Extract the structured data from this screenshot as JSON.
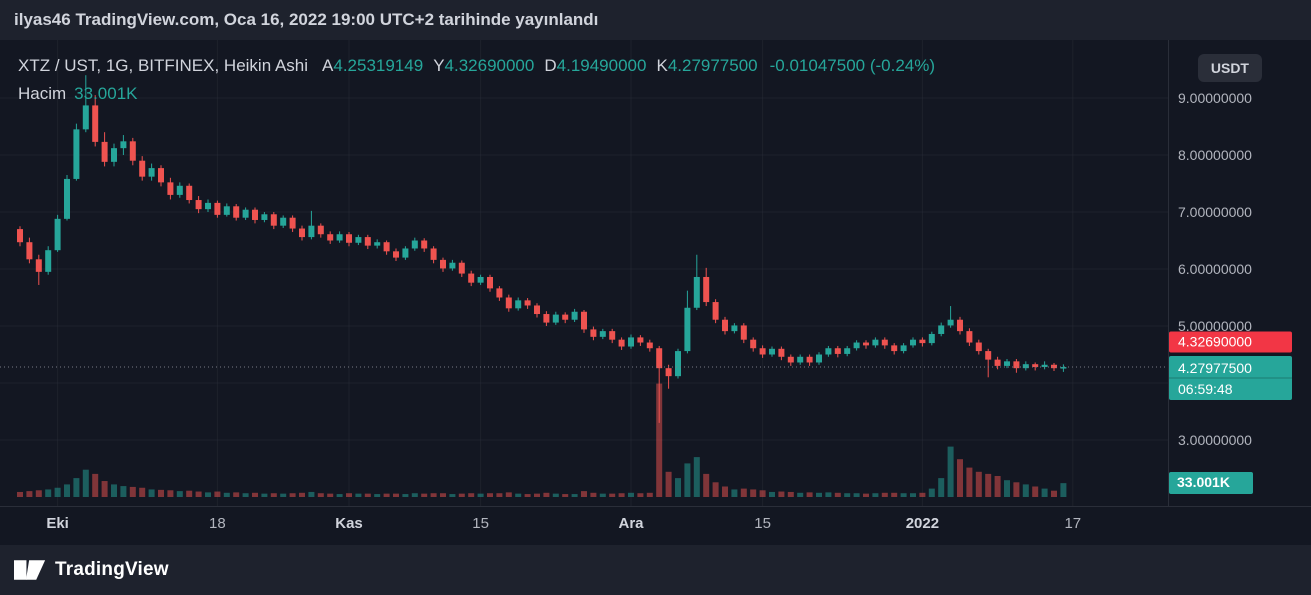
{
  "topbar": {
    "published_text": "ilyas46 TradingView.com, Oca 16, 2022 19:00 UTC+2 tarihinde yayınlandı"
  },
  "legend": {
    "title": "XTZ / UST, 1G, BITFINEX, Heikin Ashi",
    "ohlc": [
      {
        "label": "A",
        "value": "4.25319149"
      },
      {
        "label": "Y",
        "value": "4.32690000"
      },
      {
        "label": "D",
        "value": "4.19490000"
      },
      {
        "label": "K",
        "value": "4.27977500"
      }
    ],
    "change": "-0.01047500 (-0.24%)",
    "volume_label": "Hacim",
    "volume_value": "33.001K"
  },
  "price_scale": {
    "currency_button": "USDT",
    "labels": [
      {
        "price": 9,
        "text": "9.00000000"
      },
      {
        "price": 8,
        "text": "8.00000000"
      },
      {
        "price": 7,
        "text": "7.00000000"
      },
      {
        "price": 6,
        "text": "6.00000000"
      },
      {
        "price": 5,
        "text": "5.00000000"
      },
      {
        "price": 3,
        "text": "3.00000000"
      }
    ],
    "high_badge": {
      "text": "4.32690000",
      "price": 4.3269
    },
    "last_badge": {
      "price_text": "4.27977500",
      "countdown": "06:59:48",
      "price": 4.279775
    },
    "volume_badge": {
      "text": "33.001K"
    }
  },
  "time_scale": {
    "labels": [
      {
        "i": 4,
        "text": "Eki",
        "major": true
      },
      {
        "i": 21,
        "text": "18",
        "major": false
      },
      {
        "i": 35,
        "text": "Kas",
        "major": true
      },
      {
        "i": 49,
        "text": "15",
        "major": false
      },
      {
        "i": 65,
        "text": "Ara",
        "major": true
      },
      {
        "i": 79,
        "text": "15",
        "major": false
      },
      {
        "i": 96,
        "text": "2022",
        "major": true
      },
      {
        "i": 112,
        "text": "17",
        "major": false
      }
    ]
  },
  "footer": {
    "brand": "TradingView"
  },
  "colors": {
    "background": "#131722",
    "panel": "#1e222d",
    "up": "#26a69a",
    "down": "#ef5350",
    "high_badge": "#f23645",
    "last_badge": "#26a69a",
    "axis_text": "#b2b5be",
    "text": "#d1d4dc",
    "grid": "#2a2e39",
    "separator": "#2a2e39",
    "dotted_line": "#787b86",
    "badge_text": "#ffffff"
  },
  "chart_data": {
    "type": "candlestick",
    "style": "Heikin Ashi",
    "symbol": "XTZ / UST",
    "interval": "1G",
    "exchange": "BITFINEX",
    "title": "XTZ / UST, 1G, BITFINEX, Heikin Ashi",
    "legend_position": "top-left",
    "grid": true,
    "y_axis": {
      "visible_ticks": [
        9,
        8,
        7,
        6,
        5,
        3
      ],
      "range_approx": [
        2.0,
        10.0
      ]
    },
    "x_axis": {
      "labels": [
        "Eki",
        "18",
        "Kas",
        "15",
        "Ara",
        "15",
        "2022",
        "17"
      ]
    },
    "volume_pane": {
      "last_value_k": 33.001,
      "max_value_k_approx": 270
    },
    "columns": [
      "date",
      "open",
      "high",
      "low",
      "close",
      "volume_k"
    ],
    "candles": [
      [
        "2021-09-27",
        6.7,
        6.75,
        6.4,
        6.47,
        12
      ],
      [
        "2021-09-28",
        6.47,
        6.55,
        6.1,
        6.17,
        14
      ],
      [
        "2021-09-29",
        6.17,
        6.25,
        5.72,
        5.95,
        16
      ],
      [
        "2021-09-30",
        5.95,
        6.4,
        5.9,
        6.33,
        18
      ],
      [
        "2021-10-01",
        6.33,
        6.95,
        6.3,
        6.88,
        22
      ],
      [
        "2021-10-02",
        6.88,
        7.65,
        6.85,
        7.58,
        30
      ],
      [
        "2021-10-03",
        7.58,
        8.55,
        7.55,
        8.45,
        45
      ],
      [
        "2021-10-04",
        8.45,
        9.4,
        8.4,
        8.87,
        65
      ],
      [
        "2021-10-05",
        8.87,
        9.05,
        8.15,
        8.23,
        55
      ],
      [
        "2021-10-06",
        8.23,
        8.4,
        7.8,
        7.88,
        38
      ],
      [
        "2021-10-07",
        7.88,
        8.2,
        7.8,
        8.12,
        30
      ],
      [
        "2021-10-08",
        8.12,
        8.35,
        8.0,
        8.24,
        26
      ],
      [
        "2021-10-09",
        8.24,
        8.3,
        7.82,
        7.9,
        24
      ],
      [
        "2021-10-10",
        7.9,
        7.98,
        7.55,
        7.62,
        22
      ],
      [
        "2021-10-11",
        7.62,
        7.85,
        7.55,
        7.77,
        18
      ],
      [
        "2021-10-12",
        7.77,
        7.82,
        7.45,
        7.52,
        17
      ],
      [
        "2021-10-13",
        7.52,
        7.6,
        7.22,
        7.3,
        16
      ],
      [
        "2021-10-14",
        7.3,
        7.52,
        7.25,
        7.46,
        14
      ],
      [
        "2021-10-15",
        7.46,
        7.5,
        7.15,
        7.21,
        15
      ],
      [
        "2021-10-16",
        7.21,
        7.28,
        6.98,
        7.05,
        13
      ],
      [
        "2021-10-17",
        7.05,
        7.22,
        7.0,
        7.16,
        11
      ],
      [
        "2021-10-18",
        7.16,
        7.2,
        6.9,
        6.95,
        13
      ],
      [
        "2021-10-19",
        6.95,
        7.15,
        6.92,
        7.1,
        10
      ],
      [
        "2021-10-20",
        7.1,
        7.14,
        6.85,
        6.9,
        11
      ],
      [
        "2021-10-21",
        6.9,
        7.08,
        6.86,
        7.04,
        9
      ],
      [
        "2021-10-22",
        7.04,
        7.08,
        6.8,
        6.86,
        10
      ],
      [
        "2021-10-23",
        6.86,
        7.0,
        6.82,
        6.96,
        8
      ],
      [
        "2021-10-24",
        6.96,
        7.0,
        6.7,
        6.76,
        9
      ],
      [
        "2021-10-25",
        6.76,
        6.94,
        6.72,
        6.9,
        8
      ],
      [
        "2021-10-26",
        6.9,
        6.94,
        6.65,
        6.71,
        9
      ],
      [
        "2021-10-27",
        6.71,
        6.76,
        6.5,
        6.56,
        10
      ],
      [
        "2021-10-28",
        6.56,
        7.02,
        6.52,
        6.76,
        12
      ],
      [
        "2021-10-29",
        6.76,
        6.8,
        6.55,
        6.61,
        9
      ],
      [
        "2021-10-30",
        6.61,
        6.66,
        6.44,
        6.5,
        8
      ],
      [
        "2021-10-31",
        6.5,
        6.66,
        6.46,
        6.61,
        7
      ],
      [
        "2021-11-01",
        6.61,
        6.65,
        6.4,
        6.46,
        9
      ],
      [
        "2021-11-02",
        6.46,
        6.6,
        6.42,
        6.56,
        8
      ],
      [
        "2021-11-03",
        6.56,
        6.6,
        6.35,
        6.41,
        8
      ],
      [
        "2021-11-04",
        6.41,
        6.52,
        6.36,
        6.47,
        7
      ],
      [
        "2021-11-05",
        6.47,
        6.5,
        6.25,
        6.31,
        8
      ],
      [
        "2021-11-06",
        6.31,
        6.36,
        6.14,
        6.2,
        8
      ],
      [
        "2021-11-07",
        6.2,
        6.4,
        6.16,
        6.36,
        7
      ],
      [
        "2021-11-08",
        6.36,
        6.55,
        6.32,
        6.5,
        9
      ],
      [
        "2021-11-09",
        6.5,
        6.54,
        6.3,
        6.36,
        8
      ],
      [
        "2021-11-10",
        6.36,
        6.4,
        6.1,
        6.16,
        9
      ],
      [
        "2021-11-11",
        6.16,
        6.2,
        5.95,
        6.01,
        9
      ],
      [
        "2021-11-12",
        6.01,
        6.16,
        5.97,
        6.11,
        7
      ],
      [
        "2021-11-13",
        6.11,
        6.15,
        5.86,
        5.92,
        8
      ],
      [
        "2021-11-14",
        5.92,
        5.97,
        5.7,
        5.76,
        9
      ],
      [
        "2021-11-15",
        5.76,
        5.9,
        5.72,
        5.86,
        8
      ],
      [
        "2021-11-16",
        5.86,
        5.9,
        5.6,
        5.66,
        9
      ],
      [
        "2021-11-17",
        5.66,
        5.7,
        5.44,
        5.5,
        9
      ],
      [
        "2021-11-18",
        5.5,
        5.55,
        5.25,
        5.31,
        11
      ],
      [
        "2021-11-19",
        5.31,
        5.5,
        5.27,
        5.45,
        8
      ],
      [
        "2021-11-20",
        5.45,
        5.49,
        5.3,
        5.36,
        7
      ],
      [
        "2021-11-21",
        5.36,
        5.4,
        5.15,
        5.21,
        8
      ],
      [
        "2021-11-22",
        5.21,
        5.26,
        5.0,
        5.06,
        10
      ],
      [
        "2021-11-23",
        5.06,
        5.25,
        5.02,
        5.2,
        8
      ],
      [
        "2021-11-24",
        5.2,
        5.24,
        5.05,
        5.11,
        7
      ],
      [
        "2021-11-25",
        5.11,
        5.3,
        5.07,
        5.25,
        7
      ],
      [
        "2021-11-26",
        5.25,
        5.28,
        4.88,
        4.94,
        14
      ],
      [
        "2021-11-27",
        4.94,
        4.99,
        4.75,
        4.81,
        10
      ],
      [
        "2021-11-28",
        4.81,
        4.95,
        4.77,
        4.91,
        8
      ],
      [
        "2021-11-29",
        4.91,
        4.95,
        4.7,
        4.76,
        8
      ],
      [
        "2021-11-30",
        4.76,
        4.8,
        4.58,
        4.64,
        9
      ],
      [
        "2021-12-01",
        4.64,
        4.85,
        4.6,
        4.8,
        10
      ],
      [
        "2021-12-02",
        4.8,
        4.84,
        4.65,
        4.71,
        9
      ],
      [
        "2021-12-03",
        4.71,
        4.76,
        4.55,
        4.61,
        10
      ],
      [
        "2021-12-04",
        4.61,
        4.65,
        3.3,
        4.26,
        270
      ],
      [
        "2021-12-05",
        4.26,
        4.32,
        3.9,
        4.12,
        60
      ],
      [
        "2021-12-06",
        4.12,
        4.6,
        4.08,
        4.56,
        45
      ],
      [
        "2021-12-07",
        4.56,
        5.62,
        4.52,
        5.32,
        80
      ],
      [
        "2021-12-08",
        5.32,
        6.25,
        5.28,
        5.86,
        95
      ],
      [
        "2021-12-09",
        5.86,
        6.02,
        5.35,
        5.42,
        55
      ],
      [
        "2021-12-10",
        5.42,
        5.47,
        5.05,
        5.11,
        35
      ],
      [
        "2021-12-11",
        5.11,
        5.16,
        4.85,
        4.91,
        25
      ],
      [
        "2021-12-12",
        4.91,
        5.05,
        4.87,
        5.01,
        18
      ],
      [
        "2021-12-13",
        5.01,
        5.05,
        4.7,
        4.76,
        20
      ],
      [
        "2021-12-14",
        4.76,
        4.8,
        4.55,
        4.61,
        18
      ],
      [
        "2021-12-15",
        4.61,
        4.66,
        4.44,
        4.5,
        16
      ],
      [
        "2021-12-16",
        4.5,
        4.64,
        4.46,
        4.6,
        12
      ],
      [
        "2021-12-17",
        4.6,
        4.64,
        4.4,
        4.46,
        13
      ],
      [
        "2021-12-18",
        4.46,
        4.5,
        4.3,
        4.36,
        12
      ],
      [
        "2021-12-19",
        4.36,
        4.5,
        4.32,
        4.46,
        10
      ],
      [
        "2021-12-20",
        4.46,
        4.5,
        4.3,
        4.36,
        11
      ],
      [
        "2021-12-21",
        4.36,
        4.54,
        4.32,
        4.5,
        10
      ],
      [
        "2021-12-22",
        4.5,
        4.65,
        4.46,
        4.61,
        11
      ],
      [
        "2021-12-23",
        4.61,
        4.65,
        4.45,
        4.51,
        10
      ],
      [
        "2021-12-24",
        4.51,
        4.65,
        4.47,
        4.61,
        9
      ],
      [
        "2021-12-25",
        4.61,
        4.75,
        4.57,
        4.71,
        9
      ],
      [
        "2021-12-26",
        4.71,
        4.75,
        4.6,
        4.66,
        8
      ],
      [
        "2021-12-27",
        4.66,
        4.8,
        4.62,
        4.76,
        9
      ],
      [
        "2021-12-28",
        4.76,
        4.8,
        4.6,
        4.66,
        10
      ],
      [
        "2021-12-29",
        4.66,
        4.7,
        4.5,
        4.56,
        10
      ],
      [
        "2021-12-30",
        4.56,
        4.7,
        4.52,
        4.66,
        9
      ],
      [
        "2021-12-31",
        4.66,
        4.8,
        4.62,
        4.76,
        9
      ],
      [
        "2022-01-01",
        4.76,
        4.8,
        4.64,
        4.7,
        10
      ],
      [
        "2022-01-02",
        4.7,
        4.9,
        4.66,
        4.86,
        20
      ],
      [
        "2022-01-03",
        4.86,
        5.06,
        4.82,
        5.01,
        45
      ],
      [
        "2022-01-04",
        5.01,
        5.35,
        4.97,
        5.11,
        120
      ],
      [
        "2022-01-05",
        5.11,
        5.16,
        4.85,
        4.91,
        90
      ],
      [
        "2022-01-06",
        4.91,
        4.96,
        4.65,
        4.71,
        70
      ],
      [
        "2022-01-07",
        4.71,
        4.76,
        4.5,
        4.56,
        60
      ],
      [
        "2022-01-08",
        4.56,
        4.6,
        4.1,
        4.41,
        55
      ],
      [
        "2022-01-09",
        4.41,
        4.46,
        4.24,
        4.3,
        50
      ],
      [
        "2022-01-10",
        4.3,
        4.42,
        4.26,
        4.38,
        40
      ],
      [
        "2022-01-11",
        4.38,
        4.42,
        4.18,
        4.26,
        35
      ],
      [
        "2022-01-12",
        4.26,
        4.38,
        4.22,
        4.33,
        30
      ],
      [
        "2022-01-13",
        4.33,
        4.36,
        4.22,
        4.28,
        25
      ],
      [
        "2022-01-14",
        4.28,
        4.38,
        4.24,
        4.32,
        20
      ],
      [
        "2022-01-15",
        4.32,
        4.35,
        4.21,
        4.26,
        15
      ],
      [
        "2022-01-16",
        4.25319149,
        4.3269,
        4.1949,
        4.279775,
        33.001
      ]
    ]
  }
}
